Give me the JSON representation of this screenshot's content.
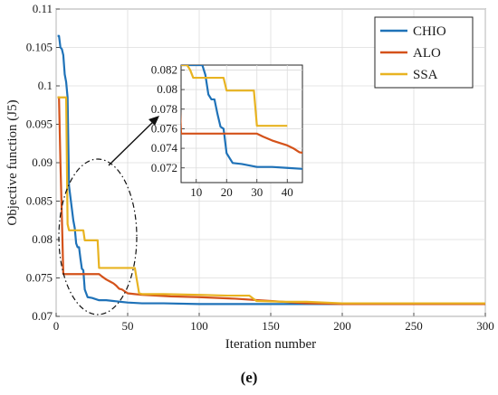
{
  "caption": "(e)",
  "colors": {
    "CHIO": "#1f72b8",
    "ALO": "#d4521a",
    "SSA": "#e8b321"
  },
  "chart_data": {
    "type": "line",
    "title": "",
    "xlabel": "Iteration number",
    "ylabel": "Objective function (J5)",
    "xlim": [
      0,
      300
    ],
    "ylim": [
      0.07,
      0.11
    ],
    "xticks": [
      "0",
      "50",
      "100",
      "150",
      "200",
      "250",
      "300"
    ],
    "yticks": [
      "0.07",
      "0.075",
      "0.08",
      "0.085",
      "0.09",
      "0.095",
      "0.1",
      "0.105",
      "0.11"
    ],
    "grid": true,
    "legend_position": "top-right",
    "series": [
      {
        "name": "CHIO",
        "color": "#1f72b8",
        "x": [
          1,
          2,
          3,
          4,
          5,
          6,
          7,
          8,
          9,
          10,
          11,
          12,
          13,
          14,
          15,
          16,
          17,
          18,
          19,
          20,
          22,
          25,
          30,
          35,
          40,
          45,
          50,
          60,
          75,
          100,
          150,
          200,
          250,
          300
        ],
        "y": [
          0.1065,
          0.1065,
          0.105,
          0.1048,
          0.104,
          0.1015,
          0.1005,
          0.0985,
          0.087,
          0.0855,
          0.084,
          0.0825,
          0.0815,
          0.0795,
          0.079,
          0.079,
          0.0775,
          0.0762,
          0.076,
          0.0735,
          0.0725,
          0.0724,
          0.0721,
          0.0721,
          0.072,
          0.0719,
          0.0718,
          0.0717,
          0.0717,
          0.0716,
          0.0716,
          0.0716,
          0.0716,
          0.0716
        ]
      },
      {
        "name": "ALO",
        "color": "#d4521a",
        "x": [
          1,
          2,
          3,
          4,
          5,
          6,
          30,
          32,
          35,
          38,
          40,
          42,
          44,
          46,
          50,
          55,
          60,
          70,
          80,
          100,
          125,
          150,
          175,
          200,
          250,
          300
        ],
        "y": [
          0.0985,
          0.0985,
          0.09,
          0.083,
          0.0755,
          0.0755,
          0.0755,
          0.0752,
          0.0748,
          0.0745,
          0.0743,
          0.074,
          0.0736,
          0.0735,
          0.073,
          0.0729,
          0.0728,
          0.0727,
          0.0726,
          0.0725,
          0.0723,
          0.072,
          0.0717,
          0.0716,
          0.0716,
          0.0716
        ]
      },
      {
        "name": "SSA",
        "color": "#e8b321",
        "x": [
          1,
          2,
          5,
          7,
          8,
          9,
          10,
          15,
          19,
          20,
          25,
          29,
          30,
          35,
          40,
          50,
          55,
          58,
          60,
          75,
          100,
          120,
          135,
          140,
          160,
          175,
          200,
          250,
          300
        ],
        "y": [
          0.0985,
          0.0985,
          0.0985,
          0.0985,
          0.082,
          0.0812,
          0.0812,
          0.0812,
          0.0812,
          0.0799,
          0.0799,
          0.0799,
          0.0763,
          0.0763,
          0.0763,
          0.0763,
          0.0763,
          0.073,
          0.0729,
          0.0729,
          0.0728,
          0.0727,
          0.0727,
          0.072,
          0.0719,
          0.0719,
          0.0717,
          0.0717,
          0.0717
        ]
      }
    ],
    "inset": {
      "xlim": [
        5,
        45
      ],
      "ylim": [
        0.0705,
        0.0825
      ],
      "xticks": [
        "10",
        "20",
        "30",
        "40"
      ],
      "yticks": [
        "0.072",
        "0.074",
        "0.076",
        "0.078",
        "0.08",
        "0.082"
      ]
    }
  }
}
